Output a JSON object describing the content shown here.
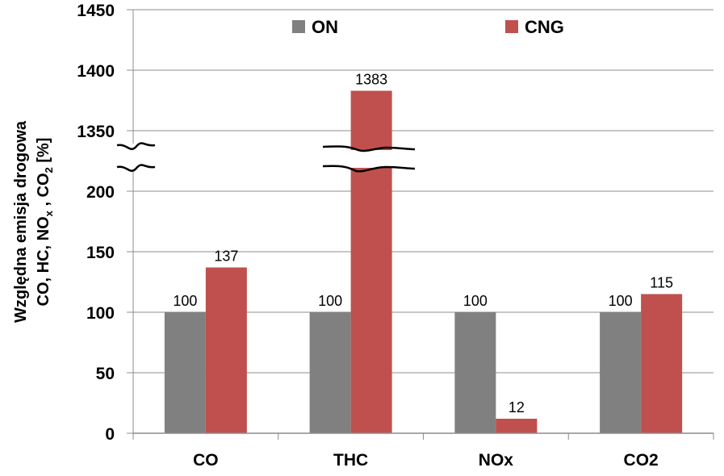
{
  "chart_data": {
    "type": "bar",
    "categories": [
      "CO",
      "THC",
      "NOx",
      "CO2"
    ],
    "series": [
      {
        "name": "ON",
        "values": [
          100,
          100,
          100,
          100
        ],
        "color": "#808080"
      },
      {
        "name": "CNG",
        "values": [
          137,
          1383,
          12,
          115
        ],
        "color": "#c0504d"
      }
    ],
    "data_labels": {
      "ON": [
        "100",
        "100",
        "100",
        "100"
      ],
      "CNG": [
        "137",
        "1383",
        "12",
        "115"
      ]
    },
    "yticks_lower": [
      "0",
      "50",
      "100",
      "150",
      "200"
    ],
    "yticks_upper": [
      "1350",
      "1400",
      "1450"
    ],
    "ylabel_line1": "Względna emisja drogowa",
    "ylabel_line2": {
      "main": "CO, HC, NO",
      "sub_x": "x",
      "mid": " , CO",
      "sub_2": "2",
      "tail": " [%]"
    },
    "axis_break": {
      "lower": [
        0,
        230
      ],
      "upper": [
        1330,
        1450
      ]
    },
    "legend_position": "top",
    "grid": true
  }
}
